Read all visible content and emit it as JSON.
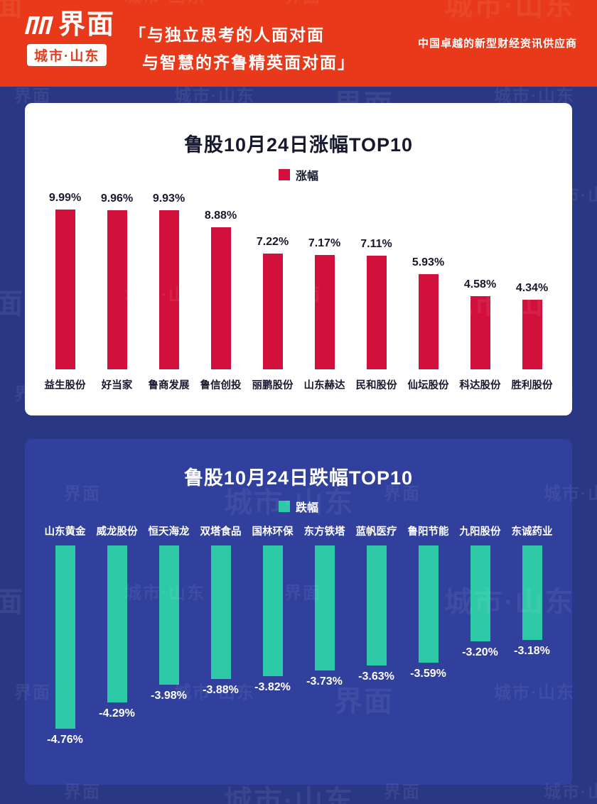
{
  "header": {
    "brand": "界面",
    "brand_sub": "城市·山东",
    "slogan_line1": "「与独立思考的人面对面",
    "slogan_line2": "与智慧的齐鲁精英面对面」",
    "tagline": "中国卓越的新型财经资讯供应商"
  },
  "watermark": {
    "brand": "界面",
    "sub": "城市·山东"
  },
  "colors": {
    "header_bg": "#e83a1a",
    "page_bg": "#2a3785",
    "card2_bg": "#30409c",
    "up_bar": "#d1113c",
    "down_bar": "#2ec9a7",
    "dark_text": "#17182e"
  },
  "chart_data": [
    {
      "type": "bar",
      "title": "鲁股10月24日涨幅TOP10",
      "legend": "涨幅",
      "legend_position": "top",
      "direction": "up",
      "bar_color": "#d1113c",
      "categories": [
        "益生股份",
        "好当家",
        "鲁商发展",
        "鲁信创投",
        "丽鹏股份",
        "山东赫达",
        "民和股份",
        "仙坛股份",
        "科达股份",
        "胜利股份"
      ],
      "values": [
        9.99,
        9.96,
        9.93,
        8.88,
        7.22,
        7.17,
        7.11,
        5.93,
        4.58,
        4.34
      ],
      "value_labels": [
        "9.99%",
        "9.96%",
        "9.93%",
        "8.88%",
        "7.22%",
        "7.17%",
        "7.11%",
        "5.93%",
        "4.58%",
        "4.34%"
      ],
      "ylim": [
        0,
        10
      ],
      "grid": false
    },
    {
      "type": "bar",
      "title": "鲁股10月24日跌幅TOP10",
      "legend": "跌幅",
      "legend_position": "top",
      "direction": "down",
      "bar_color": "#2ec9a7",
      "categories": [
        "山东黄金",
        "威龙股份",
        "恒天海龙",
        "双塔食品",
        "国林环保",
        "东方铁塔",
        "蓝帆医疗",
        "鲁阳节能",
        "九阳股份",
        "东诚药业"
      ],
      "values": [
        -4.76,
        -4.29,
        -3.98,
        -3.88,
        -3.82,
        -3.73,
        -3.63,
        -3.59,
        -3.2,
        -3.18
      ],
      "value_labels": [
        "-4.76%",
        "-4.29%",
        "-3.98%",
        "-3.88%",
        "-3.82%",
        "-3.73%",
        "-3.63%",
        "-3.59%",
        "-3.20%",
        "-3.18%"
      ],
      "ylim": [
        -5,
        0
      ],
      "grid": false
    }
  ]
}
